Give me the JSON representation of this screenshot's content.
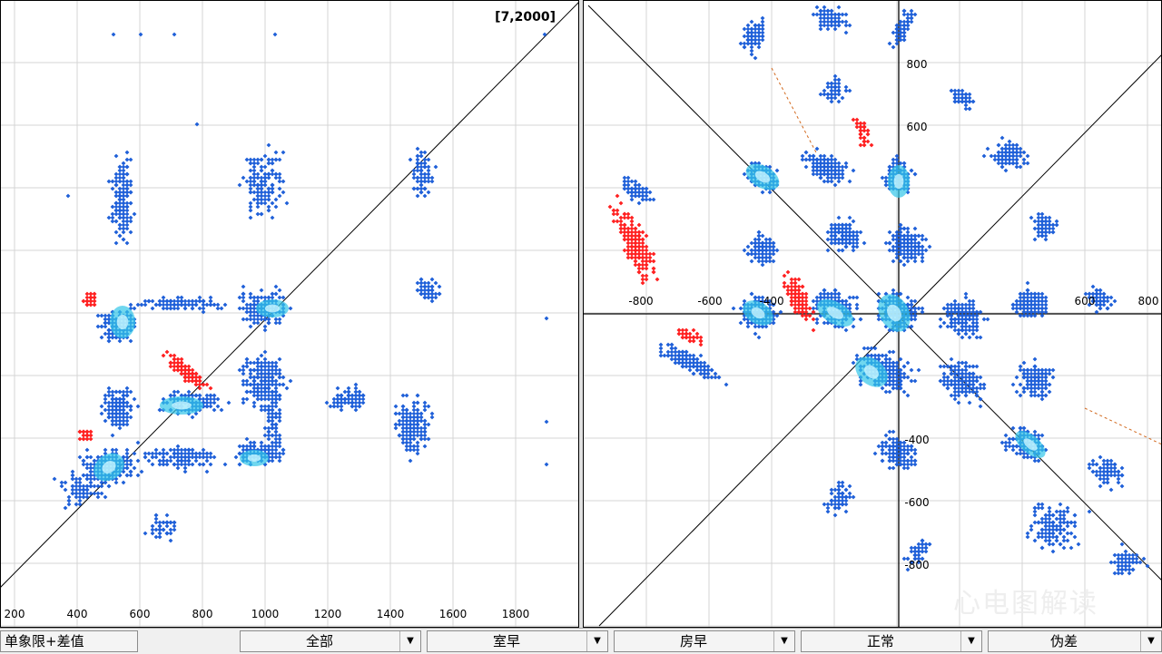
{
  "left_panel": {
    "corner_label": "[7,2000]",
    "x_ticks": [
      "200",
      "400",
      "600",
      "800",
      "1000",
      "1200",
      "1400",
      "1600",
      "1800"
    ]
  },
  "right_panel": {
    "x_ticks": [
      "-800",
      "-600",
      "-400",
      "600",
      "800"
    ],
    "y_ticks": [
      "800",
      "600",
      "-400",
      "-600",
      "-800"
    ]
  },
  "toolbar": {
    "left_button": "单象限+差值",
    "dropdowns": [
      "全部",
      "室早",
      "房早",
      "正常",
      "伪差"
    ]
  },
  "watermark": "心电图解读",
  "colors": {
    "normal_points": "#1e5fd8",
    "ectopic_points": "#ff2020",
    "dense_core": "#33c6e8",
    "grid": "#d4d4d4",
    "axis": "#000000",
    "trend_line": "#d2691e"
  }
}
